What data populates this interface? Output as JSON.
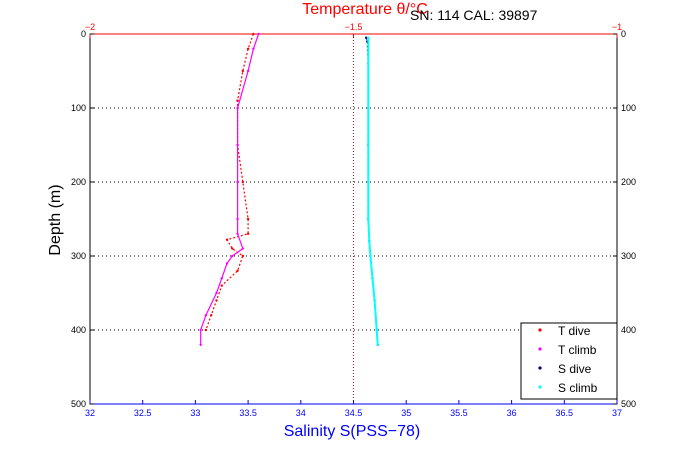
{
  "chart_data": {
    "type": "scatter",
    "title": "Temperature θ/°C",
    "annotation": "SN: 114  CAL: 39897",
    "xlabel": "Salinity S(PSS−78)",
    "ylabel": "Depth (m)",
    "xlim": [
      32,
      37
    ],
    "xticks": [
      "32",
      "32.5",
      "33",
      "33.5",
      "34",
      "34.5",
      "35",
      "35.5",
      "36",
      "36.5",
      "37"
    ],
    "temp_xlim": [
      -2,
      -1
    ],
    "temp_xticks": [
      "−2",
      "−1.5",
      "−1"
    ],
    "ylim": [
      0,
      500
    ],
    "yticks": [
      "0",
      "100",
      "200",
      "300",
      "400",
      "500"
    ],
    "y_reversed": true,
    "grid": "y-dotted",
    "reference_line": {
      "x": 34.5,
      "axis": "salinity"
    },
    "legend_position": "bottom-right",
    "colors": {
      "T dive": "#ff0000",
      "T climb": "#ff00ff",
      "S dive": "#00008b",
      "S climb": "#00ffff"
    },
    "series": [
      {
        "name": "T dive",
        "axis": "temperature",
        "x": [
          -1.69,
          -1.7,
          -1.71,
          -1.72,
          -1.72,
          -1.71,
          -1.7,
          -1.7,
          -1.74,
          -1.73,
          -1.71,
          -1.72,
          -1.75,
          -1.76,
          -1.77,
          -1.78
        ],
        "y": [
          0,
          20,
          50,
          90,
          150,
          200,
          250,
          270,
          278,
          290,
          300,
          320,
          340,
          360,
          380,
          400
        ]
      },
      {
        "name": "T climb",
        "axis": "temperature",
        "x": [
          -1.79,
          -1.79,
          -1.78,
          -1.76,
          -1.75,
          -1.74,
          -1.73,
          -1.71,
          -1.72,
          -1.72,
          -1.72,
          -1.72,
          -1.72,
          -1.7,
          -1.69,
          -1.68
        ],
        "y": [
          420,
          400,
          380,
          350,
          330,
          310,
          300,
          290,
          270,
          250,
          200,
          150,
          100,
          50,
          20,
          0
        ]
      },
      {
        "name": "S dive",
        "axis": "salinity",
        "x": [
          34.62,
          34.63,
          34.64,
          34.64,
          34.64,
          34.64,
          34.64,
          34.65,
          34.66,
          34.68,
          34.7,
          34.72,
          34.73
        ],
        "y": [
          5,
          10,
          40,
          100,
          150,
          200,
          250,
          280,
          300,
          330,
          360,
          400,
          420
        ]
      },
      {
        "name": "S climb",
        "axis": "salinity",
        "x": [
          34.73,
          34.72,
          34.7,
          34.68,
          34.66,
          34.65,
          34.64,
          34.64,
          34.64,
          34.64,
          34.64,
          34.64
        ],
        "y": [
          420,
          400,
          360,
          330,
          300,
          280,
          250,
          200,
          150,
          100,
          40,
          5
        ]
      }
    ]
  }
}
